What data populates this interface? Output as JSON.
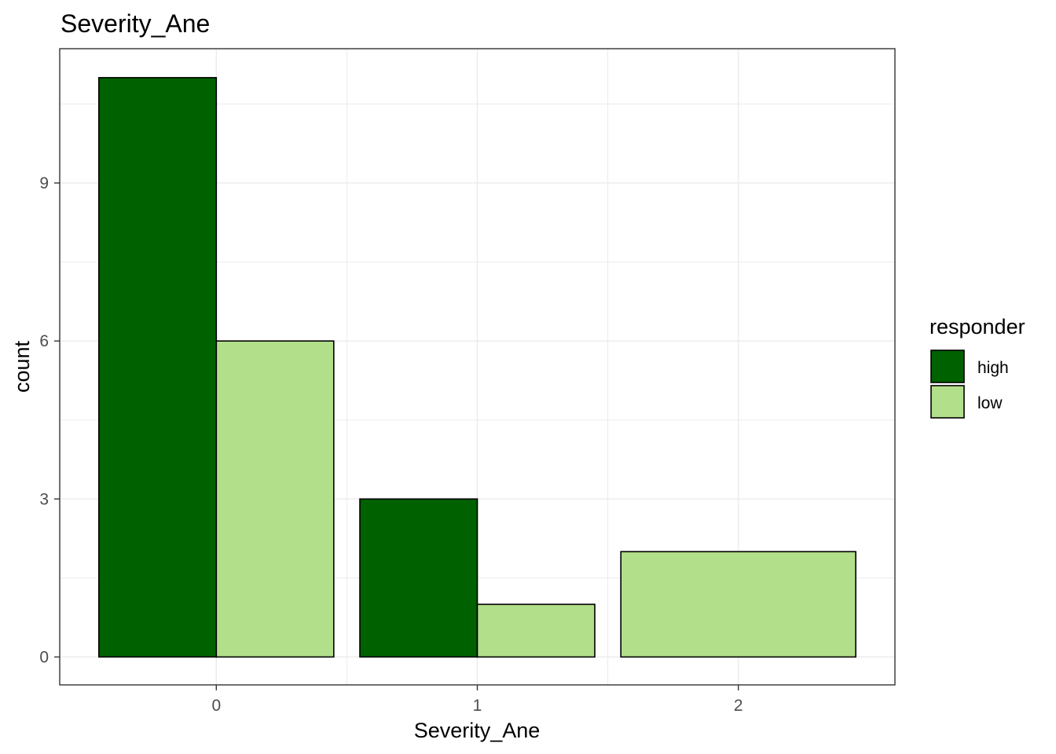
{
  "chart_data": {
    "type": "bar",
    "title": "Severity_Ane",
    "xlabel": "Severity_Ane",
    "ylabel": "count",
    "categories": [
      "0",
      "1",
      "2"
    ],
    "series": [
      {
        "name": "high",
        "values": [
          11,
          3,
          0
        ]
      },
      {
        "name": "low",
        "values": [
          6,
          1,
          2
        ]
      }
    ],
    "ylim": [
      -0.53,
      11.55
    ],
    "yticks": [
      0,
      3,
      6,
      9
    ],
    "ytick_labels": [
      "0",
      "3",
      "6",
      "9"
    ],
    "xtick_labels": [
      "0",
      "1",
      "2"
    ],
    "grid": true,
    "position": "dodge",
    "legend": {
      "title": "responder",
      "placement": "right",
      "entries": [
        "high",
        "low"
      ]
    },
    "colors": {
      "high": "#006100",
      "low": "#b2df8a",
      "bar_outline": "#000000",
      "grid": "#ebebeb",
      "panel_border": "#333333"
    }
  }
}
